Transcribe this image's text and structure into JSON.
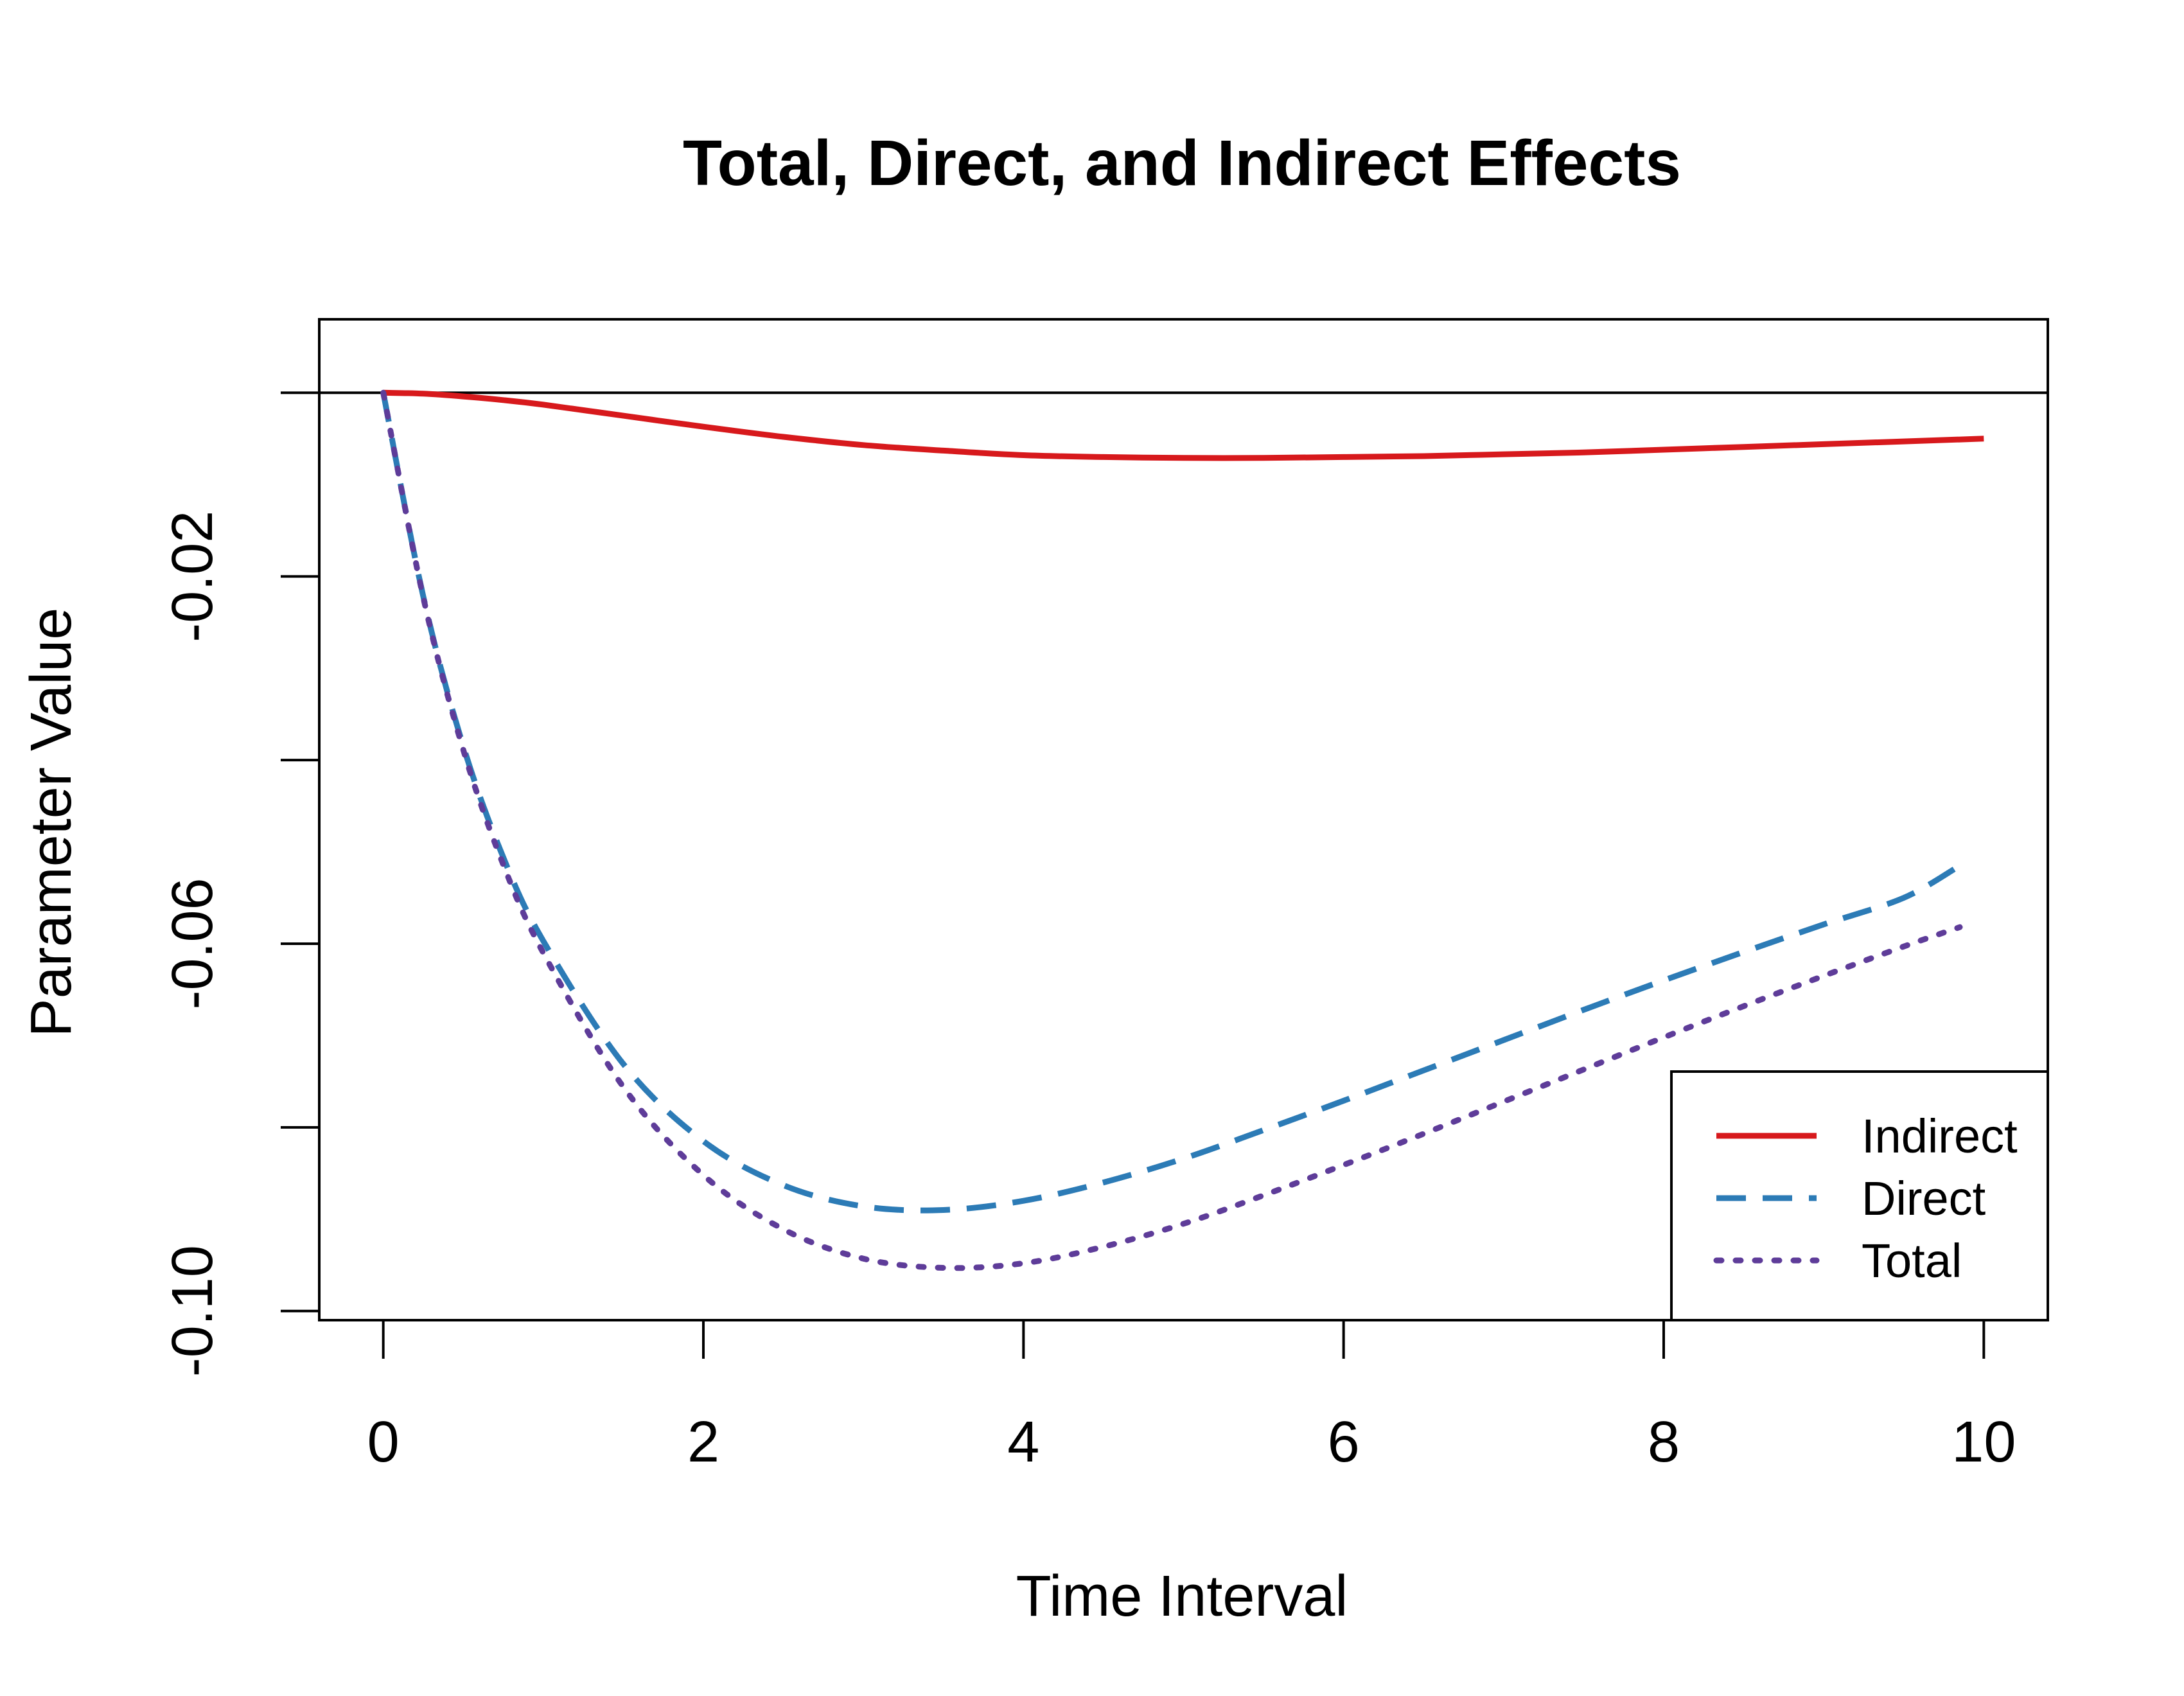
{
  "chart_data": {
    "type": "line",
    "title": "Total, Direct, and Indirect Effects",
    "xlabel": "Time Interval",
    "ylabel": "Parameter Value",
    "xlim": [
      -0.4,
      10.4
    ],
    "ylim": [
      -0.101,
      0.008
    ],
    "xticks": [
      0,
      2,
      4,
      6,
      8,
      10
    ],
    "xtick_labels": [
      "0",
      "2",
      "4",
      "6",
      "8",
      "10"
    ],
    "yticks": [
      -0.02,
      -0.04,
      -0.06,
      -0.08,
      -0.1
    ],
    "ytick_labels": [
      "-0.02",
      "",
      "-0.06",
      "",
      "-0.10"
    ],
    "reference_line_y": 0,
    "grid": false,
    "legend_position": "bottom-right",
    "series": [
      {
        "name": "Indirect",
        "style": "solid",
        "color": "#D7191C",
        "x": [
          0,
          0.25,
          0.5,
          0.75,
          1,
          1.5,
          2,
          2.5,
          3,
          3.5,
          4,
          4.5,
          5,
          5.5,
          6,
          6.5,
          7,
          7.5,
          8,
          8.5,
          9,
          9.5,
          10
        ],
        "y": [
          0,
          -0.0001,
          -0.0004,
          -0.0008,
          -0.0013,
          -0.0025,
          -0.0037,
          -0.0048,
          -0.0057,
          -0.0063,
          -0.0068,
          -0.007,
          -0.0071,
          -0.0071,
          -0.007,
          -0.0069,
          -0.0067,
          -0.0065,
          -0.0062,
          -0.0059,
          -0.0056,
          -0.0053,
          -0.005
        ]
      },
      {
        "name": "Direct",
        "style": "dashed",
        "color": "#2C7BB6",
        "x": [
          0,
          0.25,
          0.5,
          0.75,
          1,
          1.5,
          2,
          2.5,
          3,
          3.5,
          4,
          4.5,
          5,
          5.5,
          6,
          6.5,
          7,
          7.5,
          8,
          8.5,
          9,
          9.5,
          9.85
        ],
        "y": [
          0,
          -0.0222,
          -0.0385,
          -0.0506,
          -0.0597,
          -0.0731,
          -0.0815,
          -0.0863,
          -0.0886,
          -0.089,
          -0.088,
          -0.086,
          -0.0834,
          -0.0803,
          -0.0771,
          -0.0738,
          -0.0705,
          -0.0672,
          -0.064,
          -0.0609,
          -0.0579,
          -0.055,
          -0.0515
        ]
      },
      {
        "name": "Total",
        "style": "dotted",
        "color": "#5E3C99",
        "x": [
          0,
          0.25,
          0.5,
          0.75,
          1,
          1.5,
          2,
          2.5,
          3,
          3.5,
          4,
          4.5,
          5,
          5.5,
          6,
          6.5,
          7,
          7.5,
          8,
          8.5,
          9,
          9.5,
          9.85
        ],
        "y": [
          0,
          -0.0223,
          -0.0389,
          -0.0514,
          -0.061,
          -0.0756,
          -0.0852,
          -0.0911,
          -0.0943,
          -0.0953,
          -0.0948,
          -0.093,
          -0.0905,
          -0.0874,
          -0.0841,
          -0.0807,
          -0.0772,
          -0.0737,
          -0.0702,
          -0.0668,
          -0.0635,
          -0.0603,
          -0.0582
        ]
      }
    ]
  }
}
